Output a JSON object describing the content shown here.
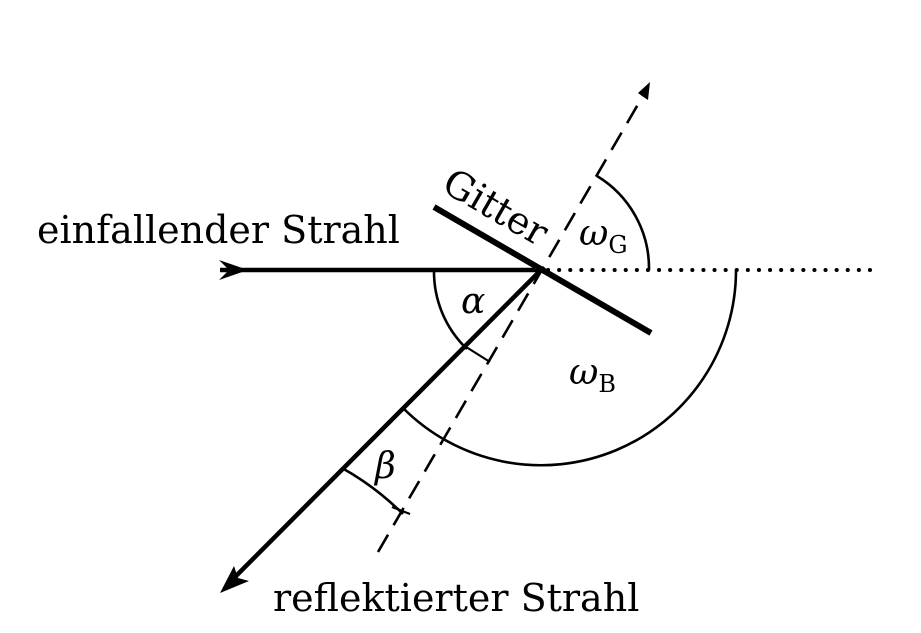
{
  "labels": {
    "incident_ray": "einfallender Strahl",
    "reflected_ray": "reflektierter Strahl",
    "grating": "Gitter",
    "alpha": "α",
    "beta": "β",
    "omega_g_symbol": "ω",
    "omega_g_subscript": "G",
    "omega_b_symbol": "ω",
    "omega_b_subscript": "B"
  }
}
